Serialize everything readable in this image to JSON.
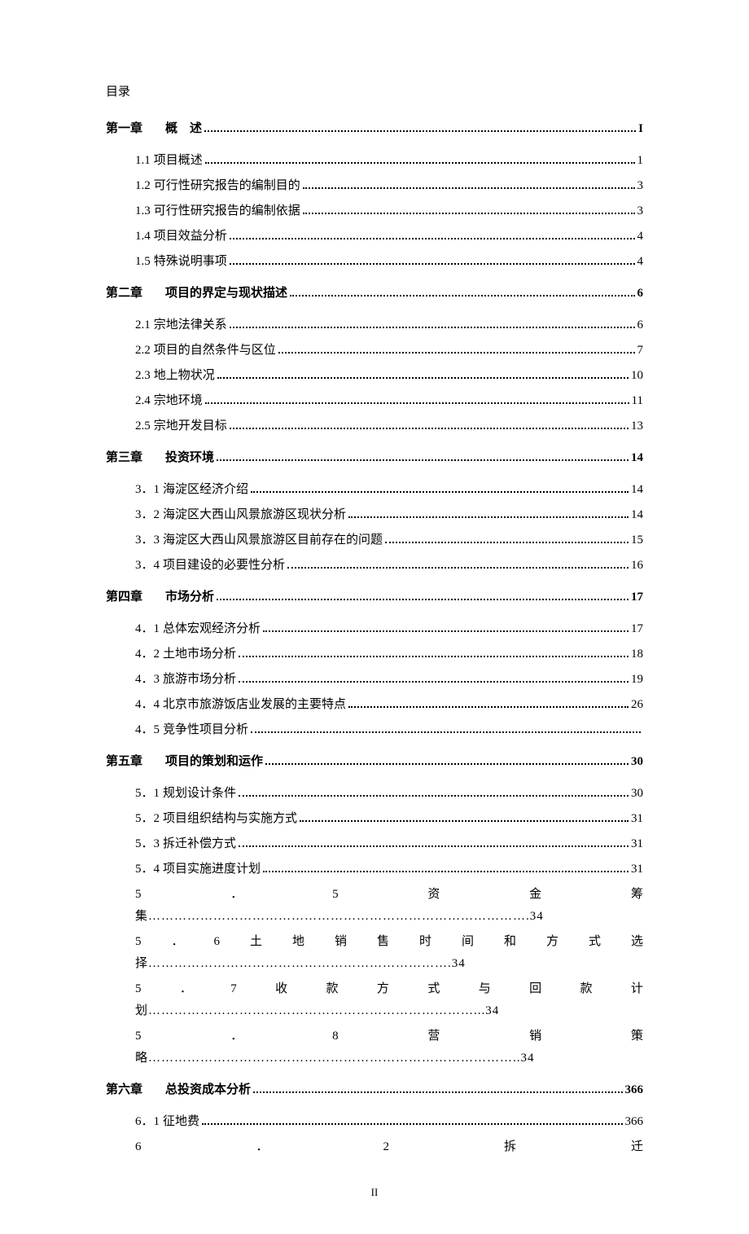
{
  "page": {
    "title": "目录",
    "footer_page_number": "II"
  },
  "chapters": [
    {
      "label": "第一章",
      "title": "概　述",
      "page": "I",
      "subs": [
        {
          "num": "1.1",
          "txt": "项目概述",
          "page": "1"
        },
        {
          "num": "1.2",
          "txt": "可行性研究报告的编制目的",
          "page": "3"
        },
        {
          "num": "1.3",
          "txt": "可行性研究报告的编制依据",
          "page": "3"
        },
        {
          "num": "1.4",
          "txt": "项目效益分析",
          "page": "4"
        },
        {
          "num": "1.5",
          "txt": "特殊说明事项",
          "page": "4"
        }
      ]
    },
    {
      "label": "第二章",
      "title": "项目的界定与现状描述",
      "page": "6",
      "subs": [
        {
          "num": "2.1",
          "txt": "宗地法律关系",
          "page": "6"
        },
        {
          "num": "2.2",
          "txt": "项目的自然条件与区位",
          "page": "7"
        },
        {
          "num": "2.3",
          "txt": "地上物状况",
          "page": "10"
        },
        {
          "num": "2.4",
          "txt": "宗地环境",
          "page": "11"
        },
        {
          "num": "2.5",
          "txt": "宗地开发目标",
          "page": "13"
        }
      ]
    },
    {
      "label": "第三章",
      "title": "投资环境",
      "page": "14",
      "subs": [
        {
          "num": "3．1",
          "txt": "海淀区经济介绍",
          "page": "14"
        },
        {
          "num": "3．2",
          "txt": "海淀区大西山风景旅游区现状分析",
          "page": "14"
        },
        {
          "num": "3．3",
          "txt": "海淀区大西山风景旅游区目前存在的问题",
          "page": "15"
        },
        {
          "num": "3．4",
          "txt": "项目建设的必要性分析",
          "page": "16"
        }
      ]
    },
    {
      "label": "第四章",
      "title": "市场分析",
      "page": "17",
      "subs": [
        {
          "num": "4．1",
          "txt": "总体宏观经济分析",
          "page": "17"
        },
        {
          "num": "4．2",
          "txt": "土地市场分析",
          "page": "18"
        },
        {
          "num": "4．3",
          "txt": "旅游市场分析",
          "page": "19"
        },
        {
          "num": "4．4",
          "txt": "北京市旅游饭店业发展的主要特点",
          "page": "26"
        },
        {
          "num": "4．5",
          "txt": "竞争性项目分析",
          "page": ""
        }
      ]
    },
    {
      "label": "第五章",
      "title": "项目的策划和运作",
      "page": "30",
      "subs": [
        {
          "num": "5．1",
          "txt": "规划设计条件",
          "page": "30"
        },
        {
          "num": "5．2",
          "txt": "项目组织结构与实施方式",
          "page": "31"
        },
        {
          "num": "5．3",
          "txt": "拆迁补偿方式",
          "page": "31"
        },
        {
          "num": "5．4",
          "txt": "项目实施进度计划",
          "page": "31"
        }
      ],
      "justified_subs": [
        {
          "chars": [
            "5",
            "．",
            "5",
            "资",
            "金",
            "筹"
          ],
          "trail": "集…………………………………………………………………………….34"
        },
        {
          "chars": [
            "5",
            "．",
            "6",
            "土",
            "地",
            "销",
            "售",
            "时",
            "间",
            "和",
            "方",
            "式",
            "选"
          ],
          "trail": "择…………………………………………………………….34"
        },
        {
          "chars": [
            "5",
            "．",
            "7",
            "收",
            "款",
            "方",
            "式",
            "与",
            "回",
            "款",
            "计"
          ],
          "trail": "划…………………………………………………………………...34"
        },
        {
          "chars": [
            "5",
            "．",
            "8",
            "营",
            "销",
            "策"
          ],
          "trail": "略…………………………………………………………………………..34"
        }
      ]
    },
    {
      "label": "第六章",
      "title": "总投资成本分析",
      "page": "366",
      "subs": [
        {
          "num": "6．1",
          "txt": "征地费",
          "page": "366"
        }
      ],
      "justified_subs": [
        {
          "chars": [
            "6",
            "．",
            "2",
            "拆",
            "迁"
          ],
          "trail": ""
        }
      ]
    }
  ],
  "colors": {
    "background": "#ffffff",
    "text": "#000000"
  }
}
